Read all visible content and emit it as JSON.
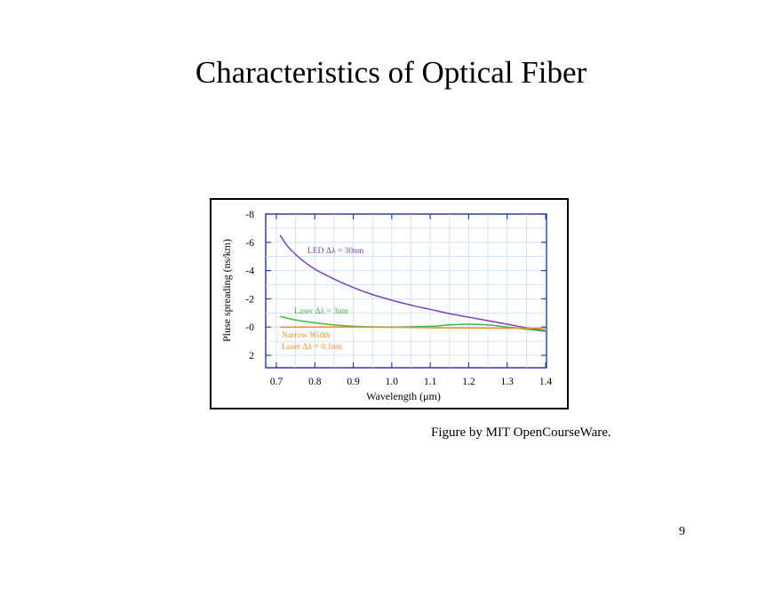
{
  "slide": {
    "title": "Characteristics of Optical Fiber",
    "credit": "Figure by MIT OpenCourseWare.",
    "page_number": "9"
  },
  "chart_data": {
    "type": "line",
    "xlabel": "Wavelength (μm)",
    "ylabel": "Pluse spreading (ns/km)",
    "xlim": [
      0.7,
      1.4
    ],
    "ylim_top": -8,
    "ylim_bottom": 2,
    "x_ticks": [
      "0.7",
      "0.8",
      "0.9",
      "1.0",
      "1.1",
      "1.2",
      "1.3",
      "1.4"
    ],
    "x_tick_values": [
      0.7,
      0.8,
      0.9,
      1.0,
      1.1,
      1.2,
      1.3,
      1.4
    ],
    "y_ticks": [
      "-8",
      "-6",
      "-4",
      "-2",
      "-0",
      "2"
    ],
    "y_tick_values": [
      -8,
      -6,
      -4,
      -2,
      0,
      2
    ],
    "grid": true,
    "series": [
      {
        "name": "LED Δλ = 30nm",
        "color": "#7b3fbf",
        "x": [
          0.71,
          0.73,
          0.76,
          0.8,
          0.85,
          0.9,
          0.95,
          1.0,
          1.05,
          1.1,
          1.15,
          1.2,
          1.25,
          1.3,
          1.35,
          1.4
        ],
        "y": [
          -6.5,
          -5.7,
          -4.9,
          -4.1,
          -3.4,
          -2.8,
          -2.3,
          -1.9,
          -1.55,
          -1.25,
          -0.95,
          -0.7,
          -0.45,
          -0.2,
          0.05,
          0.25
        ]
      },
      {
        "name": "Laser Δλ = 3nm",
        "color": "#3cb54a",
        "x": [
          0.71,
          0.75,
          0.8,
          0.85,
          0.9,
          1.0,
          1.1,
          1.15,
          1.2,
          1.25,
          1.3,
          1.35,
          1.4
        ],
        "y": [
          -0.75,
          -0.5,
          -0.3,
          -0.15,
          -0.05,
          0.0,
          -0.05,
          -0.15,
          -0.2,
          -0.15,
          0.0,
          0.15,
          0.3
        ]
      },
      {
        "name": "Narrow Width Laser Δλ = 0.1nm",
        "color": "#e8922a",
        "x": [
          0.71,
          0.8,
          0.9,
          1.0,
          1.1,
          1.2,
          1.3,
          1.4
        ],
        "y": [
          0.0,
          0.0,
          0.0,
          0.02,
          0.05,
          0.07,
          0.08,
          0.08
        ]
      }
    ],
    "annotations": [
      {
        "text": "LED Δλ = 30nm",
        "color": "#7b3fbf"
      },
      {
        "text": "Laser Δλ = 3nm",
        "color": "#3cb54a"
      },
      {
        "text": "Narrow Width",
        "color": "#e8922a"
      },
      {
        "text": "Laser Δλ = 0.1nm",
        "color": "#e8922a"
      }
    ]
  }
}
